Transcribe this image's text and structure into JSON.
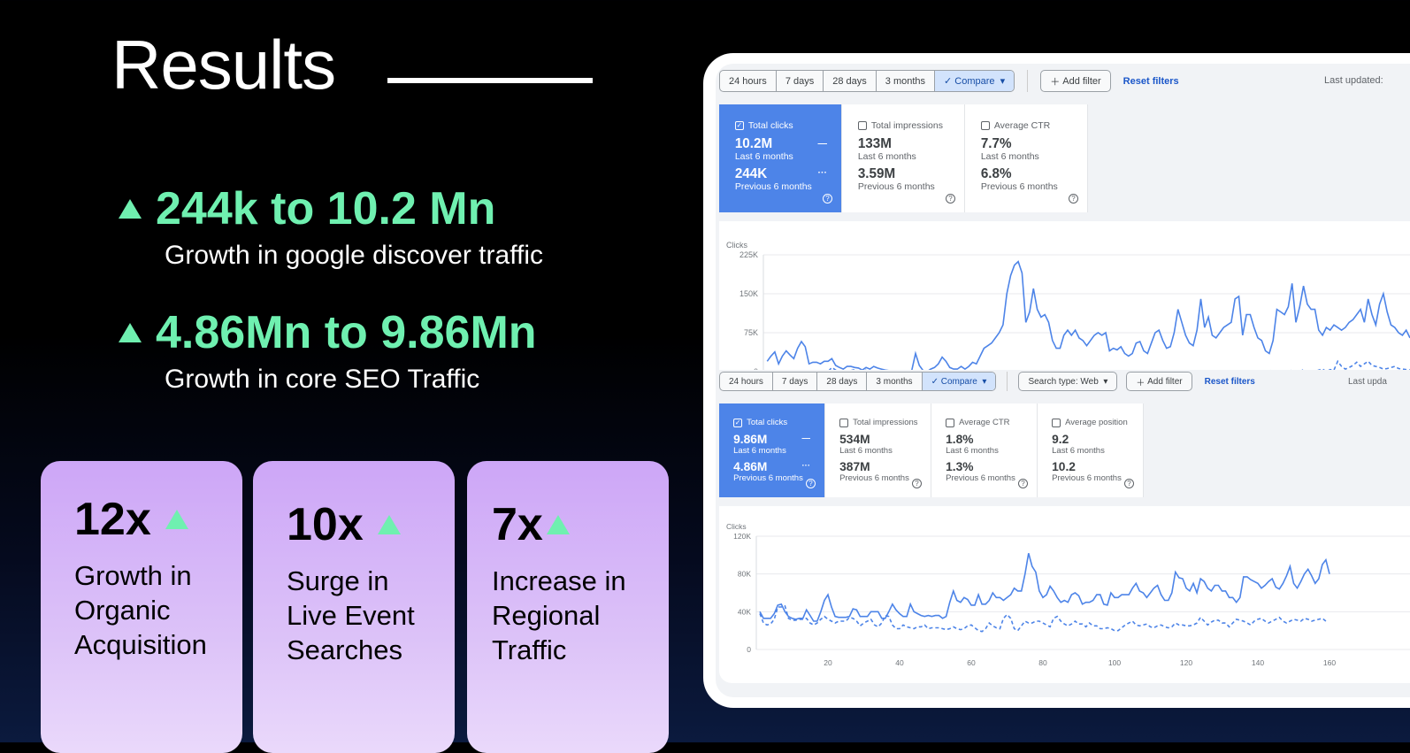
{
  "title": "Results",
  "stats": [
    {
      "headline": "244k to 10.2 Mn",
      "caption": "Growth in google discover traffic"
    },
    {
      "headline": "4.86Mn to 9.86Mn",
      "caption": "Growth in core SEO Traffic"
    }
  ],
  "cards": [
    {
      "value": "12x",
      "text": "Growth in\nOrganic\nAcquisition"
    },
    {
      "value": "10x",
      "text": "Surge in\nLive Event\nSearches"
    },
    {
      "value": "7x",
      "text": "Increase in\nRegional\nTraffic"
    }
  ],
  "colors": {
    "accent": "#6ff0b0",
    "card": "#cda6f7",
    "series": "#4d84e8"
  },
  "dash1": {
    "ranges": [
      "24 hours",
      "7 days",
      "28 days",
      "3 months"
    ],
    "compare": "Compare",
    "add_filter": "Add filter",
    "reset": "Reset filters",
    "last_updated": "Last updated:",
    "metrics": [
      {
        "label": "Total clicks",
        "value": "10.2M",
        "period": "Last 6 months",
        "prev": "244K",
        "prev_period": "Previous 6 months",
        "checked": true
      },
      {
        "label": "Total impressions",
        "value": "133M",
        "period": "Last 6 months",
        "prev": "3.59M",
        "prev_period": "Previous 6 months",
        "checked": false
      },
      {
        "label": "Average CTR",
        "value": "7.7%",
        "period": "Last 6 months",
        "prev": "6.8%",
        "prev_period": "Previous 6 months",
        "checked": false
      }
    ]
  },
  "dash2": {
    "ranges": [
      "24 hours",
      "7 days",
      "28 days",
      "3 months"
    ],
    "compare": "Compare",
    "search_type": "Search type: Web",
    "add_filter": "Add filter",
    "reset": "Reset filters",
    "last_updated": "Last upda",
    "metrics": [
      {
        "label": "Total clicks",
        "value": "9.86M",
        "period": "Last 6 months",
        "prev": "4.86M",
        "prev_period": "Previous 6 months",
        "checked": true
      },
      {
        "label": "Total impressions",
        "value": "534M",
        "period": "Last 6 months",
        "prev": "387M",
        "prev_period": "Previous 6 months",
        "checked": false
      },
      {
        "label": "Average CTR",
        "value": "1.8%",
        "period": "Last 6 months",
        "prev": "1.3%",
        "prev_period": "Previous 6 months",
        "checked": false
      },
      {
        "label": "Average position",
        "value": "9.2",
        "period": "Last 6 months",
        "prev": "10.2",
        "prev_period": "Previous 6 months",
        "checked": false
      }
    ]
  },
  "chart_data": [
    {
      "type": "line",
      "ylabel": "Clicks",
      "ylim": [
        0,
        225000
      ],
      "yticks": [
        "0",
        "75K",
        "150K",
        "225K"
      ],
      "grid": true,
      "series": [
        {
          "style": "solid",
          "values_k": [
            20,
            30,
            38,
            15,
            30,
            40,
            32,
            25,
            45,
            58,
            48,
            15,
            18,
            18,
            15,
            20,
            20,
            25,
            12,
            8,
            5,
            10,
            10,
            8,
            7,
            3,
            8,
            5,
            10,
            7,
            5,
            3,
            2,
            2,
            1,
            0,
            1,
            2,
            2,
            35,
            12,
            2,
            0,
            5,
            8,
            15,
            28,
            20,
            8,
            5,
            5,
            10,
            5,
            10,
            18,
            15,
            30,
            45,
            50,
            55,
            65,
            75,
            90,
            150,
            185,
            205,
            212,
            190,
            95,
            115,
            160,
            120,
            105,
            110,
            95,
            60,
            45,
            45,
            70,
            80,
            70,
            80,
            65,
            60,
            50,
            60,
            70,
            75,
            70,
            75,
            40,
            45,
            42,
            48,
            35,
            30,
            35,
            55,
            58,
            40,
            35,
            55,
            75,
            80,
            60,
            45,
            48,
            75,
            120,
            95,
            70,
            55,
            50,
            80,
            140,
            85,
            105,
            70,
            65,
            75,
            85,
            90,
            95,
            140,
            145,
            70,
            110,
            110,
            85,
            65,
            60,
            40,
            35,
            60,
            120,
            115,
            110,
            125,
            170,
            95,
            125,
            165,
            130,
            120,
            120,
            80,
            70,
            85,
            80,
            90,
            85,
            80,
            85,
            95,
            100,
            110,
            120,
            95,
            140,
            110,
            90,
            130,
            150,
            115,
            90,
            85,
            75,
            70,
            80,
            65
          ]
        },
        {
          "style": "dashed",
          "values_k": [
            0,
            0,
            0,
            0,
            0,
            0,
            0,
            0,
            0,
            0,
            0,
            0,
            0,
            0,
            0,
            0,
            0,
            8,
            3,
            1,
            0,
            0,
            2,
            4,
            1,
            0,
            3,
            1,
            0,
            0,
            0,
            0,
            0,
            0,
            0,
            0,
            0,
            0,
            0,
            0,
            0,
            0,
            0,
            0,
            0,
            0,
            0,
            0,
            0,
            0,
            0,
            0,
            0,
            0,
            0,
            0,
            0,
            0,
            0,
            0,
            0,
            0,
            0,
            0,
            0,
            0,
            0,
            0,
            0,
            0,
            0,
            0,
            0,
            0,
            0,
            0,
            0,
            0,
            0,
            0,
            0,
            0,
            0,
            0,
            0,
            0,
            0,
            0,
            0,
            0,
            0,
            0,
            0,
            0,
            0,
            0,
            0,
            0,
            0,
            0,
            0,
            0,
            0,
            0,
            0,
            0,
            0,
            0,
            0,
            0,
            0,
            1,
            0,
            0,
            0,
            1,
            0,
            0,
            1,
            0,
            0,
            0,
            0,
            0,
            0,
            0,
            1,
            0,
            0,
            0,
            2,
            0,
            3,
            0,
            1,
            2,
            0,
            0,
            3,
            1,
            0,
            4,
            0,
            2,
            0,
            3,
            5,
            0,
            4,
            3,
            20,
            10,
            5,
            8,
            12,
            18,
            10,
            15,
            20,
            12,
            10,
            8,
            5,
            6,
            8,
            10,
            6,
            5,
            4,
            3
          ]
        }
      ]
    },
    {
      "type": "line",
      "ylabel": "Clicks",
      "ylim": [
        0,
        120000
      ],
      "yticks": [
        "0",
        "40K",
        "80K",
        "120K"
      ],
      "xticks": [
        "20",
        "40",
        "60",
        "80",
        "100",
        "120",
        "140",
        "160"
      ],
      "grid": true,
      "series": [
        {
          "style": "solid",
          "values_k": [
            40,
            33,
            33,
            33,
            38,
            47,
            48,
            40,
            35,
            33,
            32,
            33,
            33,
            42,
            36,
            30,
            30,
            40,
            52,
            58,
            45,
            35,
            34,
            34,
            34,
            35,
            43,
            42,
            35,
            35,
            35,
            40,
            40,
            40,
            33,
            33,
            40,
            48,
            42,
            38,
            35,
            35,
            48,
            40,
            38,
            36,
            35,
            36,
            35,
            36,
            36,
            33,
            35,
            50,
            62,
            52,
            50,
            55,
            53,
            47,
            47,
            58,
            48,
            48,
            52,
            60,
            55,
            55,
            52,
            55,
            58,
            65,
            62,
            62,
            80,
            102,
            88,
            82,
            62,
            55,
            58,
            67,
            62,
            55,
            50,
            52,
            50,
            58,
            60,
            57,
            48,
            50,
            50,
            52,
            58,
            58,
            48,
            47,
            60,
            55,
            55,
            58,
            58,
            58,
            65,
            70,
            62,
            60,
            55,
            60,
            65,
            68,
            58,
            52,
            52,
            60,
            82,
            76,
            75,
            65,
            62,
            70,
            60,
            75,
            72,
            65,
            62,
            68,
            68,
            62,
            62,
            55,
            55,
            50,
            55,
            77,
            77,
            74,
            72,
            70,
            65,
            68,
            72,
            75,
            66,
            64,
            70,
            78,
            88,
            70,
            65,
            72,
            80,
            85,
            78,
            70,
            75,
            90,
            95,
            80
          ]
        },
        {
          "style": "dashed",
          "values_k": [
            38,
            28,
            26,
            27,
            32,
            45,
            45,
            46,
            33,
            31,
            31,
            32,
            32,
            33,
            28,
            26,
            28,
            32,
            35,
            32,
            30,
            28,
            30,
            30,
            30,
            34,
            33,
            30,
            25,
            28,
            30,
            32,
            26,
            24,
            28,
            36,
            35,
            26,
            22,
            22,
            26,
            24,
            23,
            22,
            24,
            24,
            26,
            22,
            23,
            23,
            23,
            22,
            21,
            22,
            24,
            22,
            21,
            22,
            25,
            26,
            23,
            20,
            19,
            22,
            28,
            25,
            23,
            22,
            33,
            37,
            33,
            22,
            20,
            25,
            30,
            28,
            28,
            30,
            30,
            28,
            26,
            24,
            33,
            35,
            30,
            27,
            25,
            27,
            30,
            27,
            27,
            24,
            28,
            25,
            25,
            22,
            22,
            23,
            22,
            20,
            20,
            23,
            26,
            28,
            30,
            26,
            25,
            26,
            27,
            24,
            23,
            25,
            26,
            24,
            23,
            24,
            28,
            26,
            26,
            25,
            25,
            26,
            28,
            34,
            30,
            26,
            29,
            31,
            31,
            28,
            28,
            24,
            28,
            32,
            31,
            30,
            28,
            26,
            30,
            32,
            33,
            30,
            28,
            30,
            32,
            34,
            30,
            28,
            30,
            32,
            31,
            30,
            33,
            32,
            30,
            31,
            32,
            33,
            30
          ]
        }
      ]
    }
  ]
}
